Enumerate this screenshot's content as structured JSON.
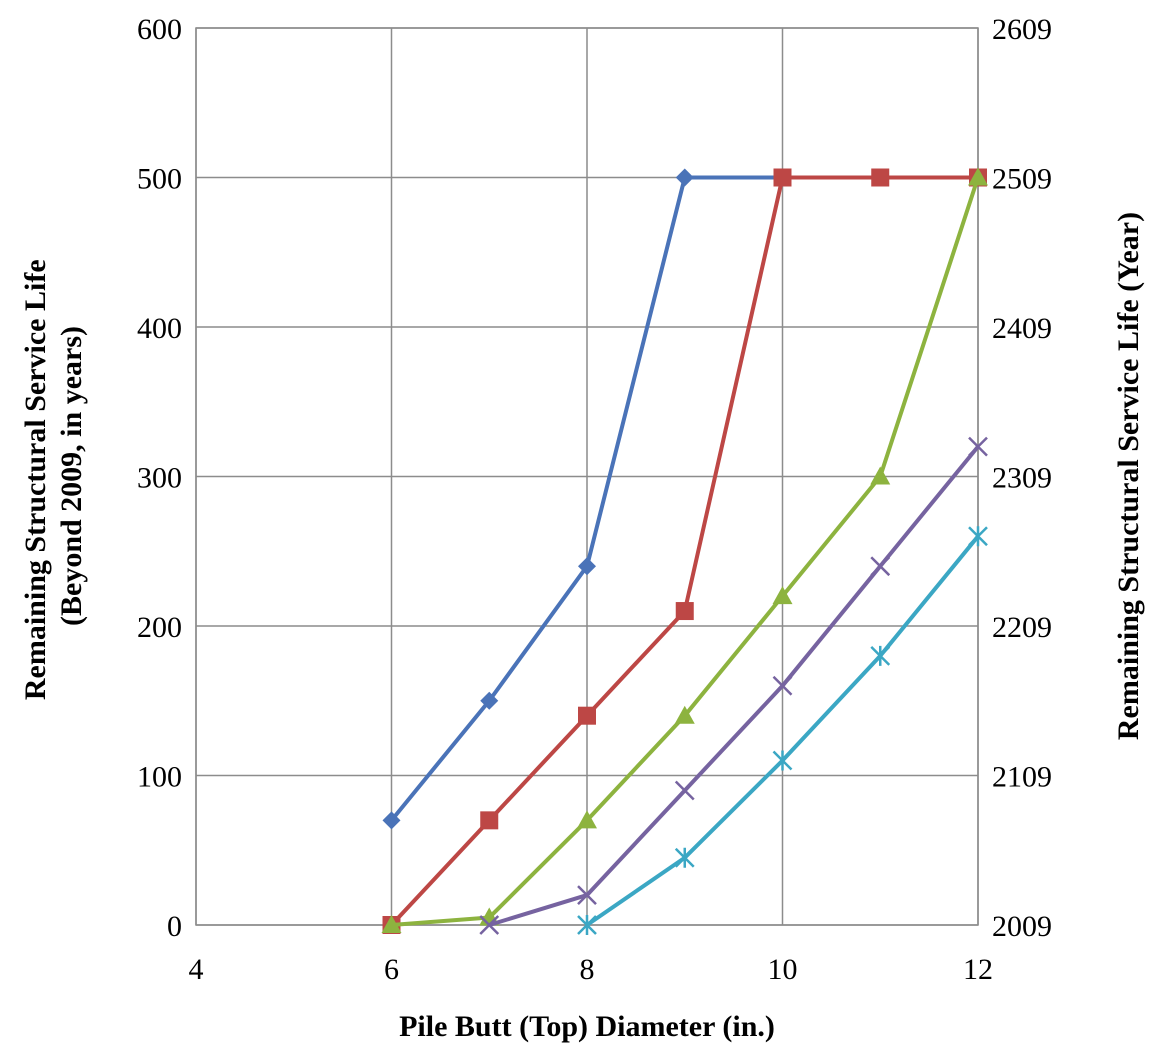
{
  "chart_data": {
    "type": "line",
    "xlabel": "Pile Butt (Top) Diameter (in.)",
    "ylabel": [
      "Remaining Structural Service Life",
      "(Beyond 2009, in years)"
    ],
    "y2label": "Remaining Structural Service Life (Year)",
    "xlim": [
      4,
      12
    ],
    "ylim": [
      0,
      600
    ],
    "y2lim": [
      2009,
      2609
    ],
    "x_ticks": [
      "4",
      "6",
      "8",
      "10",
      "12"
    ],
    "y_ticks": [
      "0",
      "100",
      "200",
      "300",
      "400",
      "500",
      "600"
    ],
    "y2_ticks": [
      "2009",
      "2109",
      "2209",
      "2309",
      "2409",
      "2509",
      "2609"
    ],
    "grid": true,
    "series": [
      {
        "color": "#4a73b8",
        "marker": "diamond",
        "points": [
          [
            6,
            70
          ],
          [
            7,
            150
          ],
          [
            8,
            240
          ],
          [
            9,
            500
          ],
          [
            10,
            500
          ],
          [
            11,
            500
          ],
          [
            12,
            500
          ]
        ]
      },
      {
        "color": "#bd4745",
        "marker": "square",
        "points": [
          [
            6,
            0
          ],
          [
            7,
            70
          ],
          [
            8,
            140
          ],
          [
            9,
            210
          ],
          [
            10,
            500
          ],
          [
            11,
            500
          ],
          [
            12,
            500
          ]
        ]
      },
      {
        "color": "#8db33f",
        "marker": "triangle",
        "points": [
          [
            6,
            0
          ],
          [
            7,
            5
          ],
          [
            8,
            70
          ],
          [
            9,
            140
          ],
          [
            10,
            220
          ],
          [
            11,
            300
          ],
          [
            12,
            500
          ]
        ]
      },
      {
        "color": "#7663a0",
        "marker": "x",
        "points": [
          [
            7,
            0
          ],
          [
            8,
            20
          ],
          [
            9,
            90
          ],
          [
            10,
            160
          ],
          [
            11,
            240
          ],
          [
            12,
            320
          ]
        ]
      },
      {
        "color": "#3ba7c4",
        "marker": "asterisk",
        "points": [
          [
            8,
            0
          ],
          [
            9,
            45
          ],
          [
            10,
            110
          ],
          [
            11,
            180
          ],
          [
            12,
            260
          ]
        ]
      }
    ]
  }
}
